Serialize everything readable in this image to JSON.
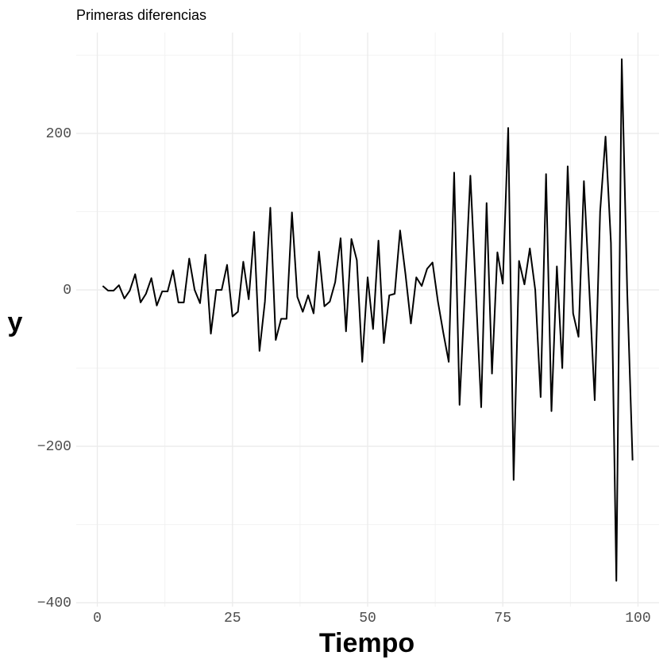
{
  "chart_data": {
    "type": "line",
    "title": "Primeras diferencias",
    "x_label": "Tiempo",
    "y_label": "y",
    "x": [
      1,
      2,
      3,
      4,
      5,
      6,
      7,
      8,
      9,
      10,
      11,
      12,
      13,
      14,
      15,
      16,
      17,
      18,
      19,
      20,
      21,
      22,
      23,
      24,
      25,
      26,
      27,
      28,
      29,
      30,
      31,
      32,
      33,
      34,
      35,
      36,
      37,
      38,
      39,
      40,
      41,
      42,
      43,
      44,
      45,
      46,
      47,
      48,
      49,
      50,
      51,
      52,
      53,
      54,
      55,
      56,
      57,
      58,
      59,
      60,
      61,
      62,
      63,
      64,
      65,
      66,
      67,
      68,
      69,
      70,
      71,
      72,
      73,
      74,
      75,
      76,
      77,
      78,
      79,
      80,
      81,
      82,
      83,
      84,
      85,
      86,
      87,
      88,
      89,
      90,
      91,
      92,
      93,
      94,
      95,
      96,
      97,
      98,
      99
    ],
    "values": [
      5,
      -1,
      -1,
      6,
      -11,
      -1,
      20,
      -16,
      -5,
      15,
      -20,
      -2,
      -2,
      25,
      -16,
      -16,
      40,
      0,
      -17,
      45,
      -56,
      0,
      0,
      32,
      -34,
      -28,
      36,
      -12,
      74,
      -78,
      -15,
      105,
      -64,
      -37,
      -37,
      99,
      -9,
      -28,
      -7,
      -30,
      49,
      -21,
      -15,
      10,
      66,
      -53,
      65,
      38,
      -92,
      16,
      -50,
      63,
      -68,
      -7,
      -5,
      76,
      20,
      -43,
      16,
      5,
      27,
      35,
      -15,
      -55,
      -92,
      150,
      -147,
      0,
      146,
      0,
      -150,
      111,
      -107,
      48,
      8,
      207,
      -243,
      37,
      7,
      53,
      0,
      -137,
      148,
      -155,
      30,
      -100,
      158,
      -30,
      -60,
      139,
      0,
      -141,
      100,
      196,
      60,
      -372,
      295,
      0,
      -218
    ],
    "color": "#000000",
    "xlim": [
      -3.9,
      103.9
    ],
    "xticks": [
      0,
      25,
      50,
      75,
      100
    ],
    "xticks_minor": [
      12.5,
      37.5,
      62.5,
      87.5
    ],
    "ylim": [
      -405,
      329
    ],
    "yticks": [
      {
        "value": -400,
        "label": "−400"
      },
      {
        "value": -200,
        "label": "−200"
      },
      0,
      200
    ],
    "yticks_minor": [
      -300,
      -100,
      100,
      300
    ],
    "grid": true
  }
}
